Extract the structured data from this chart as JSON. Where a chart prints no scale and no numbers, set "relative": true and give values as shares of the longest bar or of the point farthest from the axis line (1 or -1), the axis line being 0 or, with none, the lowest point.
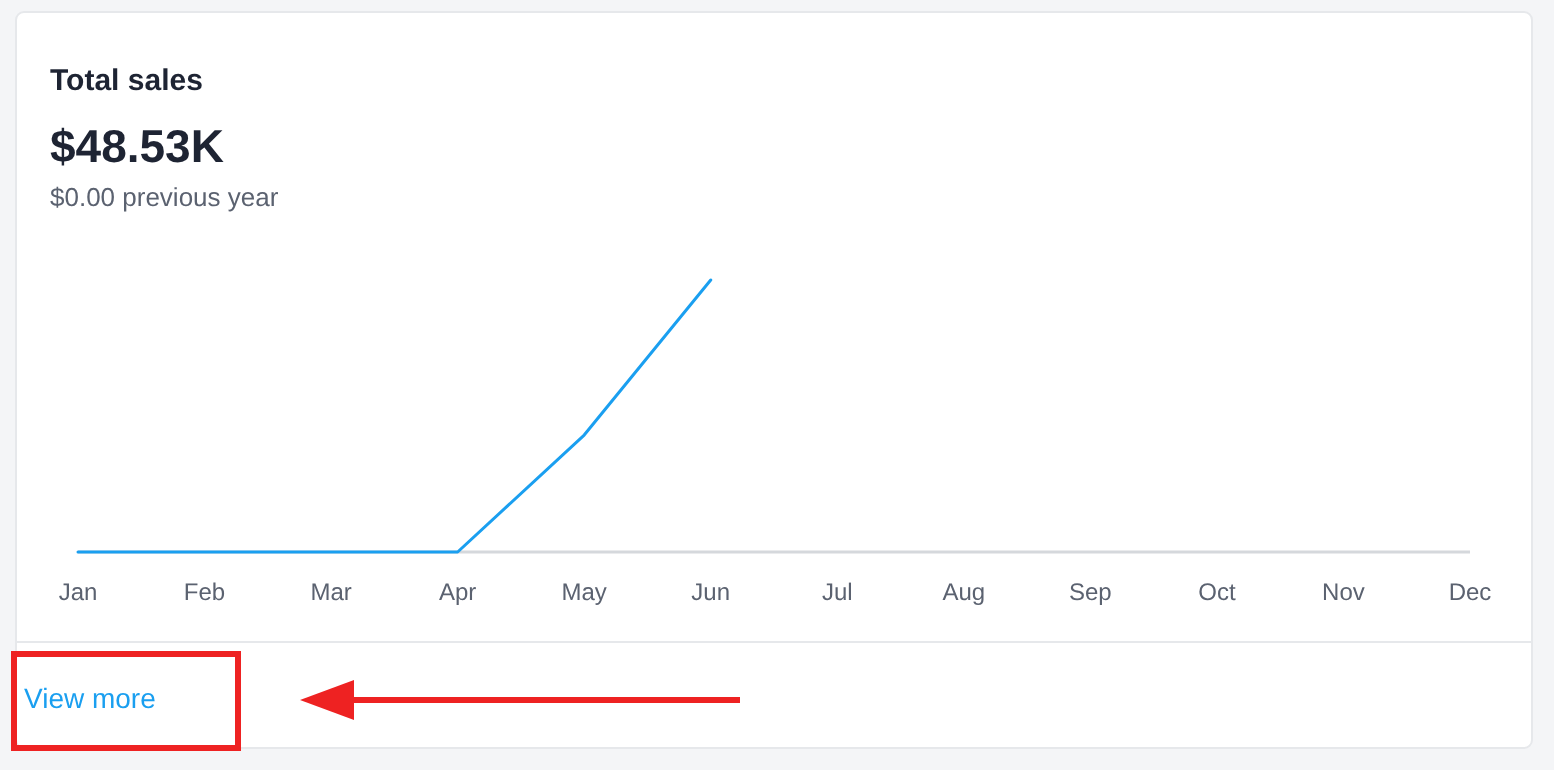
{
  "chart_data": {
    "type": "line",
    "title": "Total sales",
    "subtitle": "$48.53K",
    "annotations": [
      "$0.00 previous year",
      "View more"
    ],
    "categories": [
      "Jan",
      "Feb",
      "Mar",
      "Apr",
      "May",
      "Jun",
      "Jul",
      "Aug",
      "Sep",
      "Oct",
      "Nov",
      "Dec"
    ],
    "relative": true,
    "series": [
      {
        "color": "#1a9ff0",
        "values": [
          0,
          0,
          0,
          0,
          0.43,
          1,
          null,
          null,
          null,
          null,
          null,
          null
        ]
      }
    ]
  }
}
